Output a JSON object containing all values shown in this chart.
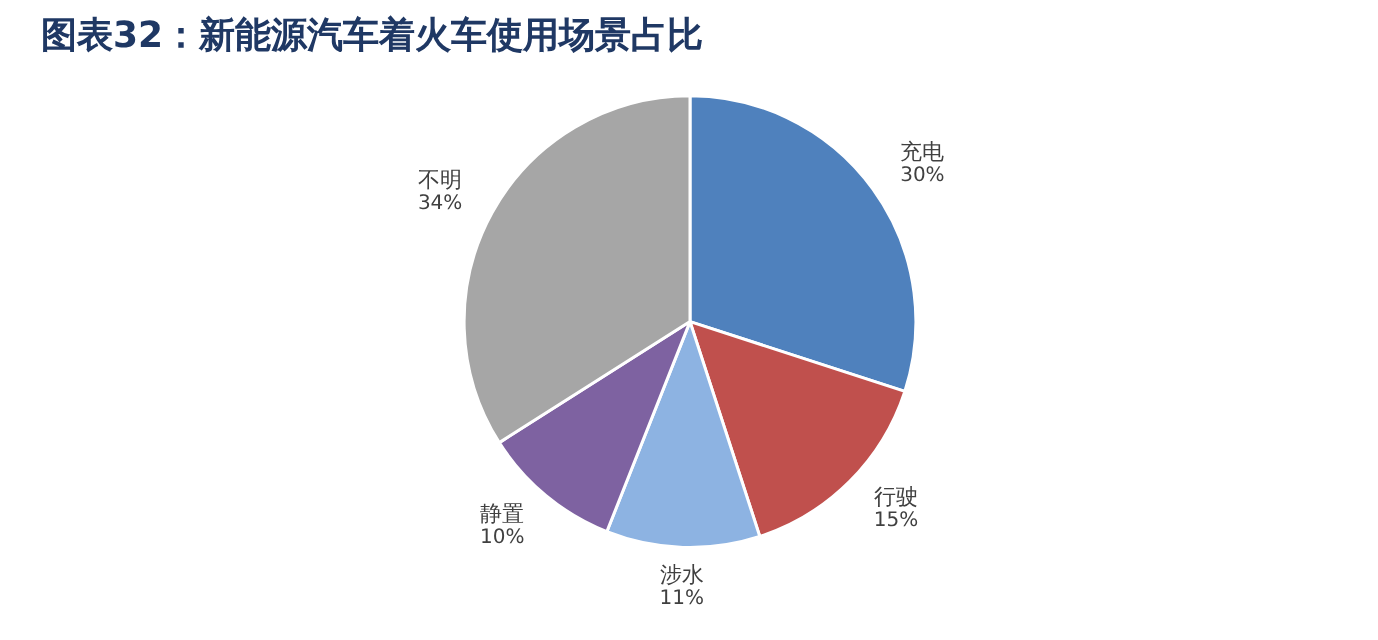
{
  "chart_data": {
    "type": "pie",
    "title": "图表32：新能源汽车着火车使用场景占比",
    "categories": [
      "充电",
      "行驶",
      "涉水",
      "静置",
      "不明"
    ],
    "values": [
      30,
      15,
      11,
      10,
      34
    ],
    "value_labels": [
      "30%",
      "15%",
      "11%",
      "10%",
      "34%"
    ],
    "colors": [
      "#4f81bd",
      "#c0504d",
      "#8db3e2",
      "#7e62a1",
      "#a6a6a6"
    ]
  }
}
